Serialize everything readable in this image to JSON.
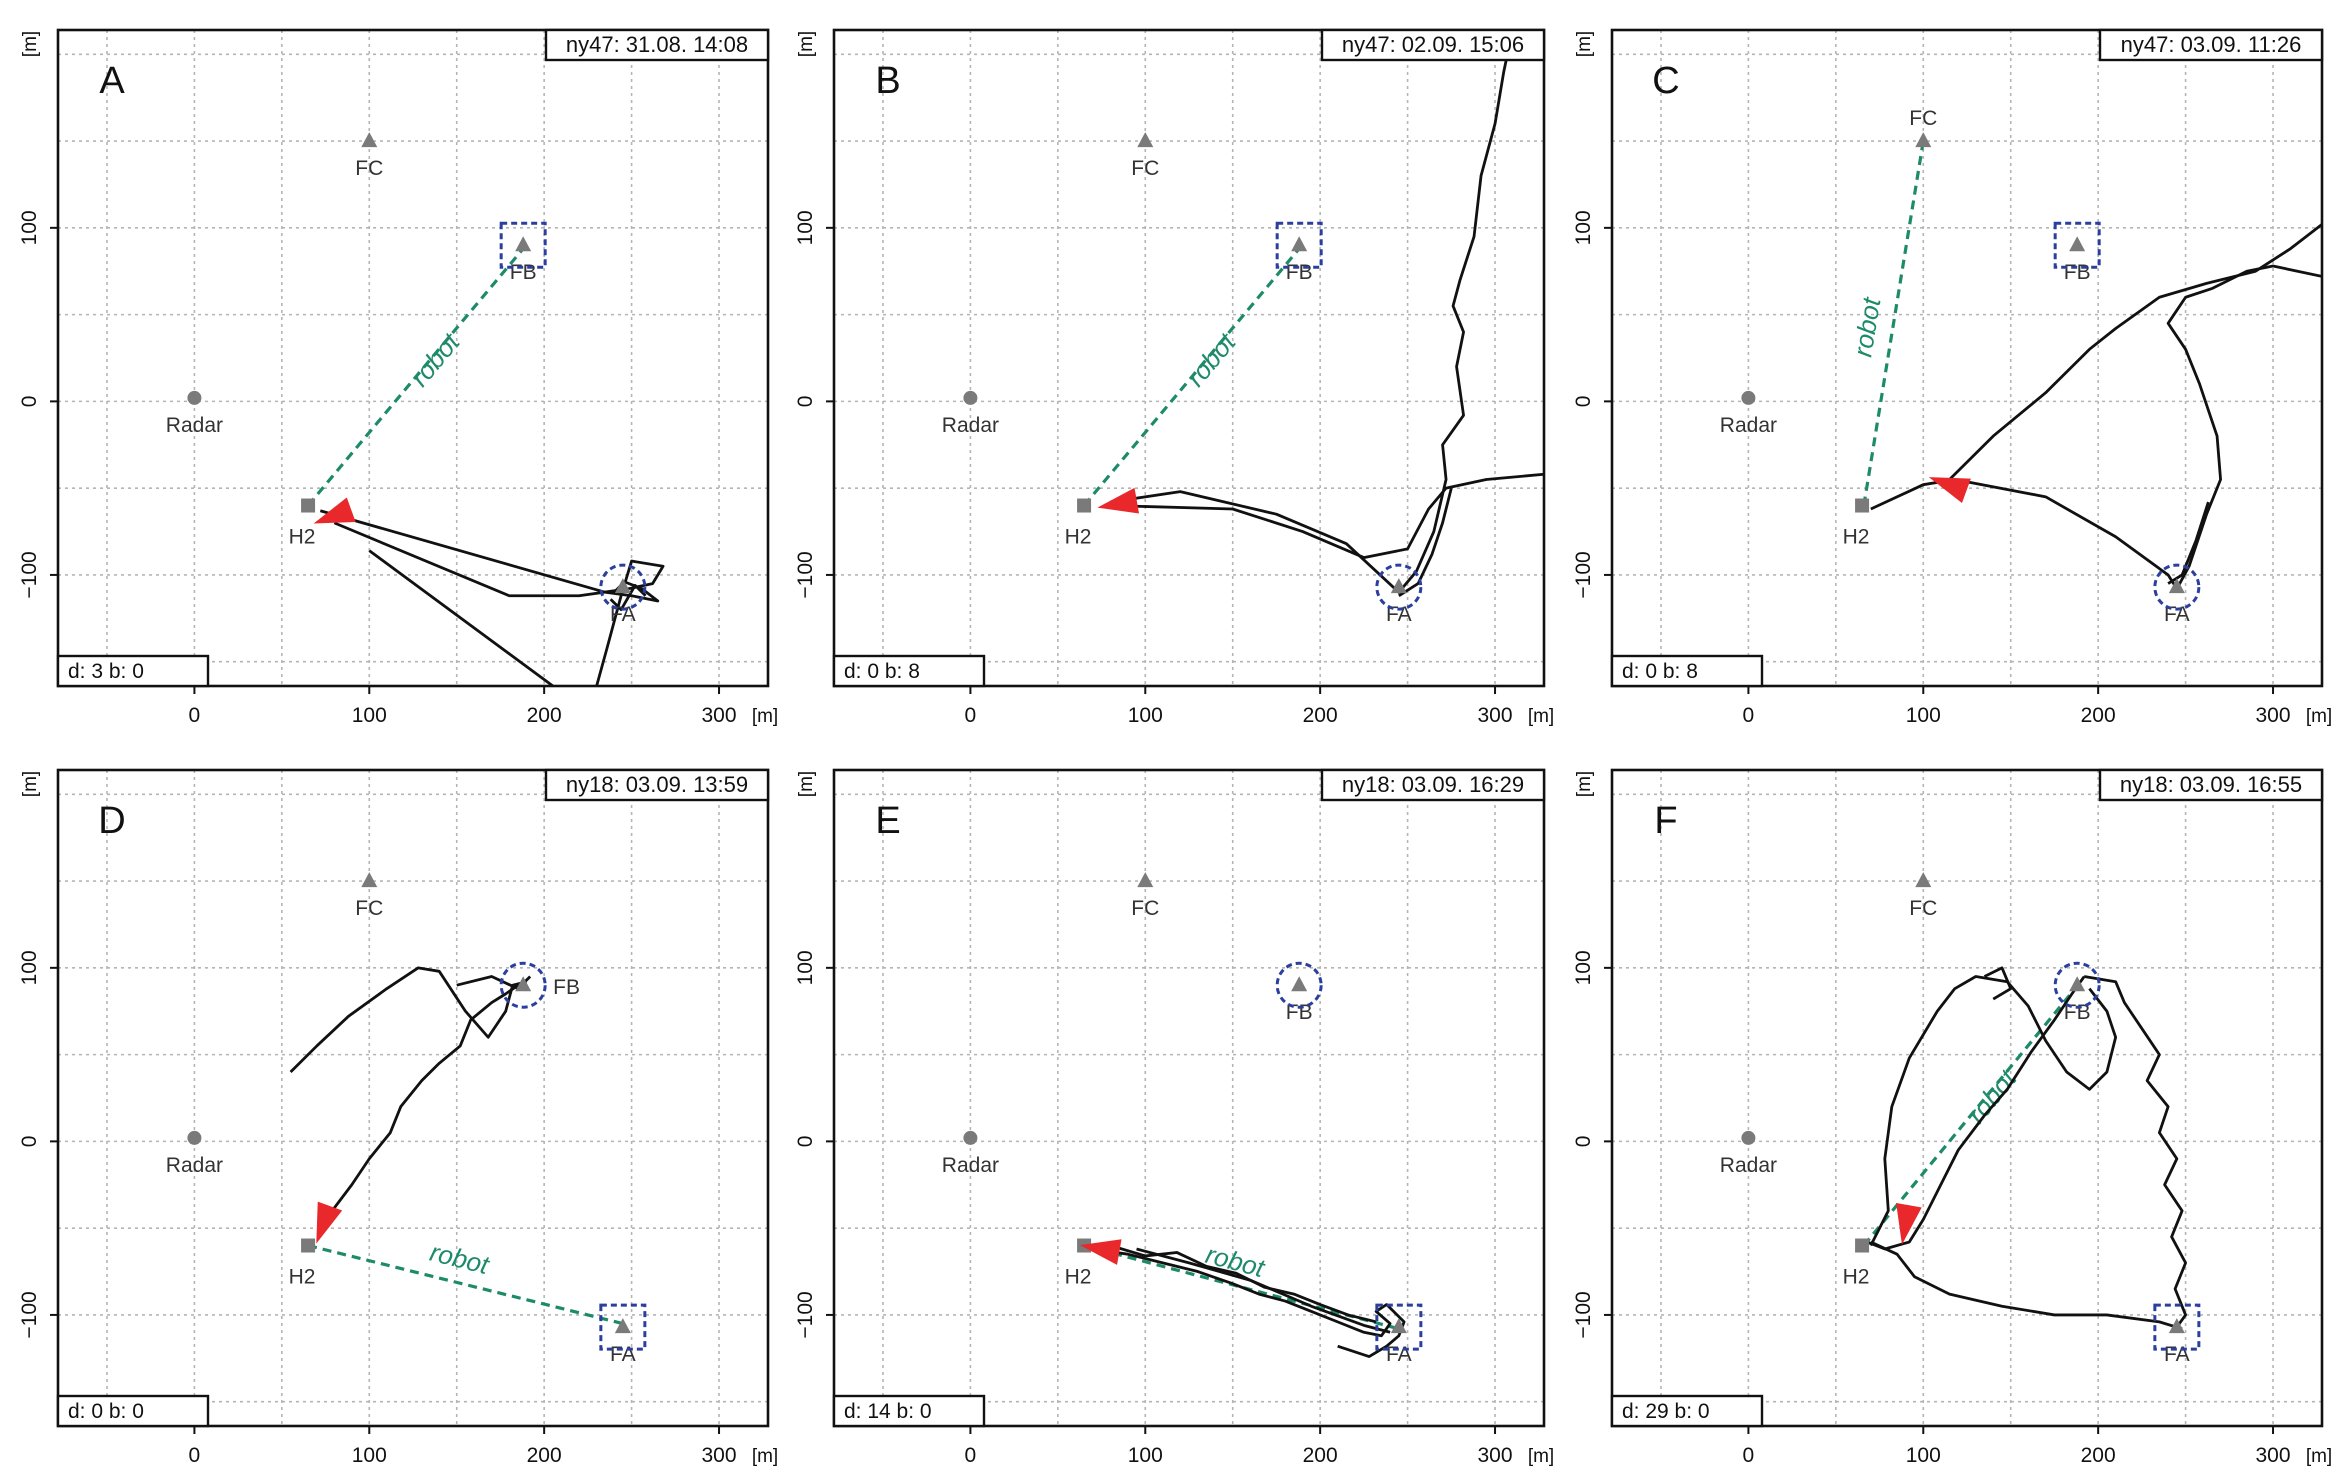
{
  "figure": {
    "x_unit": "[m]",
    "y_unit": "[m]",
    "x_ticks": [
      0,
      100,
      200,
      300
    ],
    "y_ticks": [
      -100,
      0,
      100
    ],
    "xlim": [
      -78,
      328
    ],
    "ylim": [
      -164,
      214
    ],
    "grid_step": 50,
    "landmarks": [
      {
        "label": "FC",
        "x": 100,
        "y": 150,
        "shape": "triangle"
      },
      {
        "label": "FB",
        "x": 188,
        "y": 90,
        "shape": "triangle"
      },
      {
        "label": "FA",
        "x": 245,
        "y": -107,
        "shape": "triangle"
      },
      {
        "label": "Radar",
        "x": 0,
        "y": 2,
        "shape": "circle"
      },
      {
        "label": "H2",
        "x": 65,
        "y": -60,
        "shape": "square"
      }
    ],
    "colors": {
      "track": "#111111",
      "robot_line": "#1d8a6a",
      "highlight": "#2b3f9e",
      "hive": "#e8282b",
      "landmark": "#7a7a7a",
      "grid": "#b5b5b5"
    }
  },
  "chart_data": [
    {
      "panel": "A",
      "type": "scatter",
      "title": "ny47: 31.08. 14:08",
      "stats": "d: 3 b: 0",
      "robot_label": "robot",
      "robot_line": [
        [
          65,
          -60
        ],
        [
          188,
          88
        ]
      ],
      "highlights": [
        {
          "target": "FB",
          "shape": "square"
        },
        {
          "target": "FA",
          "shape": "circle"
        }
      ],
      "hive_arrow": {
        "x": 80,
        "y": -66,
        "angle": 200
      },
      "label_pos": {
        "FC": "below",
        "FB": "below",
        "FA": "below",
        "H2": "below"
      },
      "tracks": [
        [
          [
            72,
            -63
          ],
          [
            235,
            -110
          ],
          [
            250,
            -112
          ],
          [
            265,
            -115
          ],
          [
            256,
            -108
          ],
          [
            246,
            -104
          ],
          [
            240,
            -110
          ]
        ],
        [
          [
            80,
            -70
          ],
          [
            180,
            -112
          ],
          [
            220,
            -112
          ],
          [
            248,
            -108
          ],
          [
            262,
            -105
          ],
          [
            268,
            -95
          ],
          [
            250,
            -92
          ],
          [
            244,
            -112
          ],
          [
            236,
            -142
          ],
          [
            230,
            -164
          ]
        ],
        [
          [
            100,
            -86
          ],
          [
            205,
            -164
          ]
        ],
        [
          [
            238,
            -114
          ],
          [
            244,
            -120
          ],
          [
            252,
            -106
          ],
          [
            258,
            -112
          ]
        ]
      ]
    },
    {
      "panel": "B",
      "type": "scatter",
      "title": "ny47: 02.09. 15:06",
      "stats": "d: 0 b: 8",
      "robot_label": "robot",
      "robot_line": [
        [
          65,
          -60
        ],
        [
          188,
          88
        ]
      ],
      "highlights": [
        {
          "target": "FB",
          "shape": "square"
        },
        {
          "target": "FA",
          "shape": "circle"
        }
      ],
      "hive_arrow": {
        "x": 85,
        "y": -59,
        "angle": 190
      },
      "label_pos": {
        "FC": "below",
        "FB": "below",
        "FA": "below",
        "H2": "below"
      },
      "tracks": [
        [
          [
            80,
            -58
          ],
          [
            120,
            -52
          ],
          [
            175,
            -65
          ],
          [
            215,
            -82
          ],
          [
            245,
            -110
          ],
          [
            255,
            -98
          ],
          [
            265,
            -75
          ],
          [
            272,
            -45
          ],
          [
            270,
            -25
          ],
          [
            282,
            -8
          ],
          [
            278,
            20
          ],
          [
            282,
            40
          ],
          [
            276,
            55
          ],
          [
            280,
            70
          ],
          [
            288,
            95
          ],
          [
            292,
            130
          ],
          [
            300,
            160
          ],
          [
            305,
            190
          ],
          [
            310,
            214
          ]
        ],
        [
          [
            80,
            -60
          ],
          [
            150,
            -62
          ],
          [
            190,
            -75
          ],
          [
            225,
            -90
          ],
          [
            250,
            -85
          ],
          [
            262,
            -62
          ],
          [
            272,
            -50
          ],
          [
            295,
            -45
          ],
          [
            328,
            -42
          ]
        ],
        [
          [
            245,
            -112
          ],
          [
            256,
            -105
          ],
          [
            264,
            -88
          ],
          [
            270,
            -70
          ],
          [
            275,
            -50
          ]
        ]
      ]
    },
    {
      "panel": "C",
      "type": "scatter",
      "title": "ny47: 03.09. 11:26",
      "stats": "d: 0 b: 8",
      "robot_label": "robot",
      "robot_line": [
        [
          66,
          -60
        ],
        [
          100,
          150
        ]
      ],
      "highlights": [
        {
          "target": "FB",
          "shape": "square"
        },
        {
          "target": "FA",
          "shape": "circle"
        }
      ],
      "hive_arrow": {
        "x": 115,
        "y": -48,
        "angle": 160
      },
      "label_pos": {
        "FC": "above",
        "FB": "below",
        "FA": "below",
        "H2": "below"
      },
      "tracks": [
        [
          [
            70,
            -62
          ],
          [
            100,
            -48
          ],
          [
            118,
            -45
          ],
          [
            170,
            -55
          ],
          [
            210,
            -78
          ],
          [
            240,
            -100
          ],
          [
            245,
            -108
          ],
          [
            252,
            -95
          ],
          [
            262,
            -65
          ],
          [
            270,
            -45
          ],
          [
            268,
            -20
          ],
          [
            258,
            10
          ],
          [
            250,
            30
          ],
          [
            240,
            45
          ],
          [
            250,
            60
          ],
          [
            265,
            65
          ],
          [
            285,
            75
          ],
          [
            300,
            78
          ],
          [
            328,
            72
          ]
        ],
        [
          [
            115,
            -45
          ],
          [
            140,
            -20
          ],
          [
            170,
            5
          ],
          [
            195,
            30
          ],
          [
            210,
            42
          ],
          [
            235,
            60
          ],
          [
            262,
            68
          ],
          [
            290,
            75
          ],
          [
            310,
            88
          ],
          [
            328,
            102
          ]
        ],
        [
          [
            240,
            -105
          ],
          [
            248,
            -100
          ],
          [
            256,
            -80
          ],
          [
            263,
            -58
          ]
        ]
      ]
    },
    {
      "panel": "D",
      "type": "scatter",
      "title": "ny18: 03.09. 13:59",
      "stats": "d: 0 b: 0",
      "robot_label": "robot",
      "robot_line": [
        [
          65,
          -60
        ],
        [
          245,
          -105
        ]
      ],
      "highlights": [
        {
          "target": "FB",
          "shape": "circle"
        },
        {
          "target": "FA",
          "shape": "square"
        }
      ],
      "hive_arrow": {
        "x": 74,
        "y": -47,
        "angle": 250
      },
      "label_pos": {
        "FC": "below",
        "FB": "right",
        "FA": "below",
        "H2": "below"
      },
      "tracks": [
        [
          [
            75,
            -45
          ],
          [
            90,
            -25
          ],
          [
            100,
            -10
          ],
          [
            112,
            5
          ],
          [
            118,
            20
          ],
          [
            130,
            35
          ],
          [
            140,
            45
          ],
          [
            152,
            55
          ],
          [
            158,
            70
          ],
          [
            170,
            80
          ],
          [
            178,
            85
          ],
          [
            188,
            92
          ]
        ],
        [
          [
            55,
            40
          ],
          [
            70,
            55
          ],
          [
            88,
            72
          ],
          [
            110,
            88
          ],
          [
            128,
            100
          ],
          [
            140,
            98
          ],
          [
            155,
            75
          ],
          [
            168,
            60
          ],
          [
            178,
            75
          ],
          [
            182,
            90
          ],
          [
            190,
            92
          ]
        ],
        [
          [
            150,
            90
          ],
          [
            170,
            95
          ],
          [
            185,
            88
          ],
          [
            192,
            95
          ]
        ]
      ]
    },
    {
      "panel": "E",
      "type": "scatter",
      "title": "ny18: 03.09. 16:29",
      "stats": "d: 14 b: 0",
      "robot_label": "robot",
      "robot_line": [
        [
          65,
          -60
        ],
        [
          245,
          -108
        ]
      ],
      "highlights": [
        {
          "target": "FB",
          "shape": "circle"
        },
        {
          "target": "FA",
          "shape": "square"
        }
      ],
      "hive_arrow": {
        "x": 75,
        "y": -62,
        "angle": 170
      },
      "label_pos": {
        "FC": "below",
        "FB": "below",
        "FA": "below",
        "H2": "below"
      },
      "tracks": [
        [
          [
            70,
            -62
          ],
          [
            90,
            -65
          ],
          [
            110,
            -70
          ],
          [
            130,
            -75
          ],
          [
            150,
            -82
          ],
          [
            165,
            -88
          ],
          [
            180,
            -92
          ],
          [
            195,
            -98
          ],
          [
            210,
            -104
          ],
          [
            225,
            -110
          ],
          [
            235,
            -112
          ],
          [
            240,
            -105
          ],
          [
            232,
            -98
          ],
          [
            238,
            -94
          ],
          [
            248,
            -104
          ],
          [
            245,
            -112
          ],
          [
            238,
            -118
          ],
          [
            228,
            -124
          ],
          [
            210,
            -118
          ]
        ],
        [
          [
            80,
            -60
          ],
          [
            100,
            -66
          ],
          [
            118,
            -64
          ],
          [
            135,
            -72
          ],
          [
            152,
            -76
          ],
          [
            168,
            -84
          ],
          [
            185,
            -88
          ],
          [
            200,
            -94
          ],
          [
            216,
            -100
          ],
          [
            232,
            -104
          ]
        ],
        [
          [
            95,
            -62
          ],
          [
            125,
            -70
          ],
          [
            160,
            -80
          ],
          [
            195,
            -95
          ],
          [
            225,
            -106
          ],
          [
            240,
            -110
          ]
        ]
      ]
    },
    {
      "panel": "F",
      "type": "scatter",
      "title": "ny18: 03.09. 16:55",
      "stats": "d: 29 b: 0",
      "robot_label": "robot",
      "robot_line": [
        [
          66,
          -60
        ],
        [
          190,
          92
        ]
      ],
      "highlights": [
        {
          "target": "FB",
          "shape": "circle"
        },
        {
          "target": "FA",
          "shape": "square"
        }
      ],
      "hive_arrow": {
        "x": 90,
        "y": -47,
        "angle": 260
      },
      "label_pos": {
        "FC": "below",
        "FB": "below",
        "FA": "below",
        "H2": "below"
      },
      "tracks": [
        [
          [
            68,
            -58
          ],
          [
            78,
            -62
          ],
          [
            92,
            -58
          ],
          [
            100,
            -45
          ],
          [
            110,
            -25
          ],
          [
            120,
            -5
          ],
          [
            135,
            15
          ],
          [
            148,
            30
          ],
          [
            162,
            52
          ],
          [
            175,
            70
          ],
          [
            185,
            85
          ],
          [
            192,
            95
          ]
        ],
        [
          [
            70,
            -60
          ],
          [
            80,
            -40
          ],
          [
            78,
            -10
          ],
          [
            82,
            20
          ],
          [
            92,
            48
          ],
          [
            108,
            75
          ],
          [
            118,
            88
          ],
          [
            130,
            95
          ],
          [
            148,
            92
          ],
          [
            160,
            78
          ],
          [
            170,
            58
          ],
          [
            182,
            40
          ],
          [
            195,
            30
          ],
          [
            205,
            40
          ],
          [
            210,
            60
          ],
          [
            205,
            75
          ],
          [
            195,
            88
          ]
        ],
        [
          [
            192,
            95
          ],
          [
            210,
            92
          ],
          [
            215,
            80
          ],
          [
            225,
            65
          ],
          [
            235,
            50
          ],
          [
            228,
            35
          ],
          [
            240,
            20
          ],
          [
            235,
            5
          ],
          [
            245,
            -10
          ],
          [
            238,
            -25
          ],
          [
            248,
            -40
          ],
          [
            242,
            -55
          ],
          [
            250,
            -70
          ],
          [
            244,
            -85
          ],
          [
            250,
            -100
          ],
          [
            245,
            -107
          ]
        ],
        [
          [
            70,
            -58
          ],
          [
            85,
            -65
          ],
          [
            95,
            -78
          ],
          [
            115,
            -88
          ],
          [
            145,
            -95
          ],
          [
            175,
            -100
          ],
          [
            205,
            -100
          ],
          [
            235,
            -104
          ],
          [
            248,
            -108
          ]
        ],
        [
          [
            135,
            95
          ],
          [
            145,
            100
          ],
          [
            150,
            88
          ],
          [
            140,
            82
          ]
        ]
      ]
    }
  ]
}
